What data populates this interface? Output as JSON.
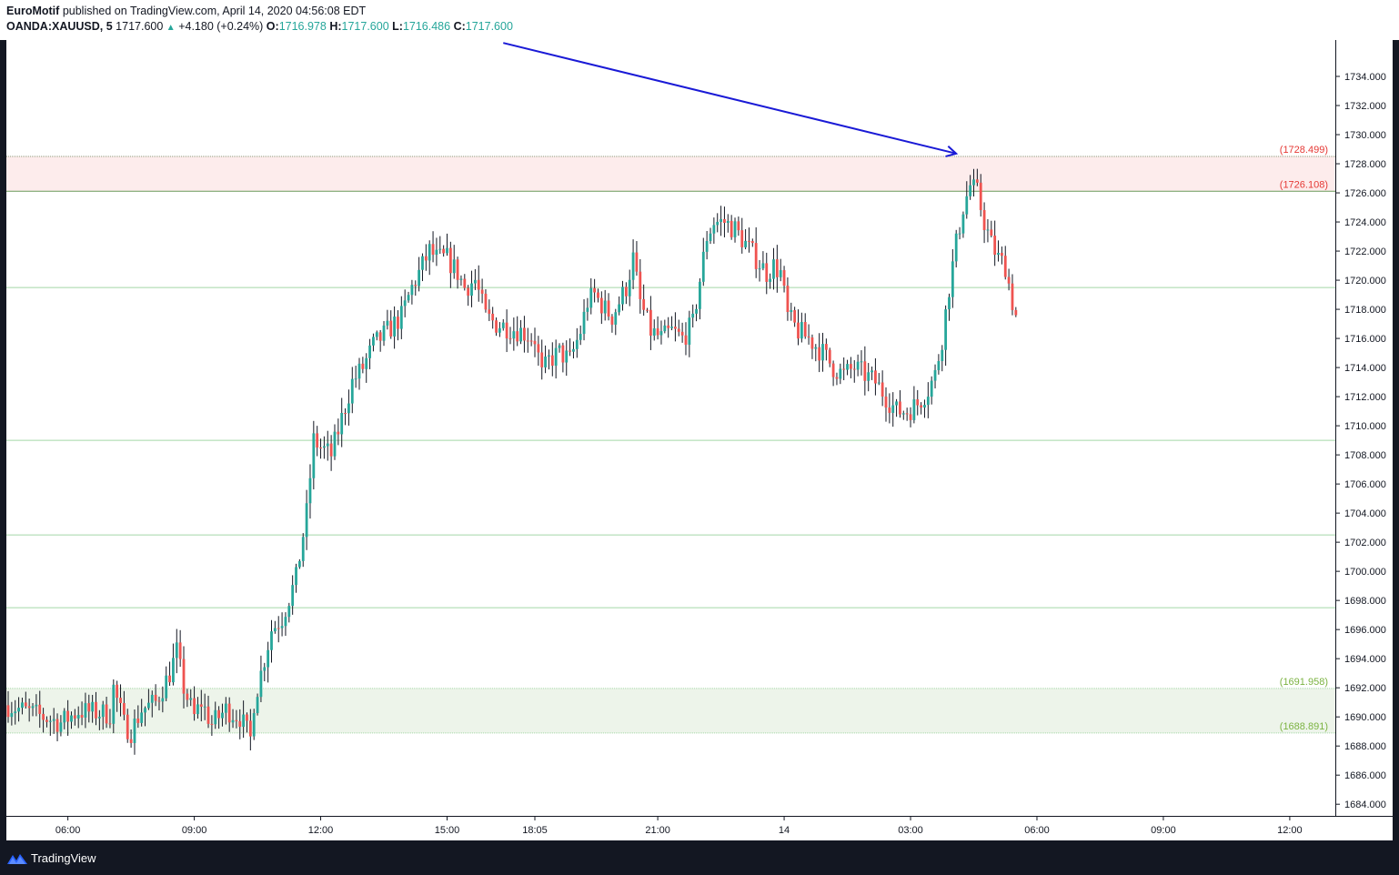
{
  "header": {
    "author": "EuroMotif",
    "published_text": "published on TradingView.com, April 14, 2020 04:56:08 EDT",
    "symbol": "OANDA:XAUUSD, 5",
    "last_price": "1717.600",
    "change": "+4.180 (+0.24%)",
    "open_label": "O:",
    "open": "1716.978",
    "high_label": "H:",
    "high": "1717.600",
    "low_label": "L:",
    "low": "1716.486",
    "close_label": "C:",
    "close": "1717.600"
  },
  "footer": {
    "brand": "TradingView"
  },
  "colors": {
    "up": "#26a69a",
    "down": "#ef5350",
    "wick": "#131722",
    "hline": "#a5d6a7",
    "resistance_fill": "#fdecec",
    "support_fill": "#edf4ea",
    "resistance_label": "#e53935",
    "support_label": "#7cb342",
    "arrow": "#1a1ad6"
  },
  "chart_data": {
    "type": "candlestick",
    "symbol": "OANDA:XAUUSD",
    "interval": "5",
    "ylim": [
      1683.2,
      1736.5
    ],
    "y_ticks": [
      1684,
      1686,
      1688,
      1690,
      1692,
      1694,
      1696,
      1698,
      1700,
      1702,
      1704,
      1706,
      1708,
      1710,
      1712,
      1714,
      1716,
      1718,
      1720,
      1722,
      1724,
      1726,
      1728,
      1730,
      1732,
      1734
    ],
    "x_ticks": [
      {
        "label": "06:00",
        "bar": 17
      },
      {
        "label": "09:00",
        "bar": 53
      },
      {
        "label": "12:00",
        "bar": 89
      },
      {
        "label": "15:00",
        "bar": 125
      },
      {
        "label": "18:05",
        "bar": 150
      },
      {
        "label": "21:00",
        "bar": 185
      },
      {
        "label": "14",
        "bar": 221
      },
      {
        "label": "03:00",
        "bar": 257
      },
      {
        "label": "06:00",
        "bar": 293
      },
      {
        "label": "09:00",
        "bar": 329
      },
      {
        "label": "12:00",
        "bar": 365
      }
    ],
    "zones": [
      {
        "name": "resistance",
        "top": 1728.499,
        "bottom": 1726.108,
        "top_label": "(1728.499)",
        "bottom_label": "(1726.108)"
      },
      {
        "name": "support",
        "top": 1691.958,
        "bottom": 1688.891,
        "top_label": "(1691.958)",
        "bottom_label": "(1688.891)"
      }
    ],
    "horizontal_lines": [
      1719.5,
      1709.0,
      1702.5,
      1697.5
    ],
    "arrow": {
      "from_bar": 141,
      "from_price": 1736.3,
      "to_bar": 270,
      "to_price": 1728.7
    },
    "anchors": [
      [
        0,
        1690.8
      ],
      [
        10,
        1690.0
      ],
      [
        15,
        1689.6
      ],
      [
        20,
        1690.4
      ],
      [
        25,
        1690.3
      ],
      [
        29,
        1690.2
      ],
      [
        30,
        1692.0
      ],
      [
        33,
        1689.5
      ],
      [
        35,
        1689.0
      ],
      [
        38,
        1690.5
      ],
      [
        42,
        1691.0
      ],
      [
        46,
        1693.0
      ],
      [
        48,
        1694.5
      ],
      [
        50,
        1692.0
      ],
      [
        53,
        1690.0
      ],
      [
        55,
        1691.0
      ],
      [
        58,
        1689.5
      ],
      [
        62,
        1690.5
      ],
      [
        66,
        1690.0
      ],
      [
        69,
        1688.5
      ],
      [
        70,
        1691.0
      ],
      [
        72,
        1693.0
      ],
      [
        75,
        1696.0
      ],
      [
        78,
        1696.8
      ],
      [
        82,
        1699.5
      ],
      [
        85,
        1704.0
      ],
      [
        87,
        1709.0
      ],
      [
        89,
        1708.5
      ],
      [
        92,
        1708.0
      ],
      [
        95,
        1710.5
      ],
      [
        98,
        1713.0
      ],
      [
        101,
        1714.0
      ],
      [
        104,
        1715.5
      ],
      [
        108,
        1716.5
      ],
      [
        112,
        1717.5
      ],
      [
        115,
        1719.5
      ],
      [
        118,
        1721.0
      ],
      [
        120,
        1722.0
      ],
      [
        122,
        1721.5
      ],
      [
        125,
        1721.5
      ],
      [
        128,
        1720.5
      ],
      [
        130,
        1719.5
      ],
      [
        133,
        1720.0
      ],
      [
        136,
        1717.5
      ],
      [
        139,
        1717.0
      ],
      [
        142,
        1716.8
      ],
      [
        146,
        1716.5
      ],
      [
        150,
        1716.0
      ],
      [
        152,
        1713.5
      ],
      [
        154,
        1714.5
      ],
      [
        157,
        1715.0
      ],
      [
        160,
        1714.5
      ],
      [
        163,
        1716.5
      ],
      [
        165,
        1718.5
      ],
      [
        167,
        1719.0
      ],
      [
        170,
        1718.0
      ],
      [
        172,
        1717.5
      ],
      [
        174,
        1718.5
      ],
      [
        176,
        1719.5
      ],
      [
        178,
        1721.5
      ],
      [
        180,
        1718.5
      ],
      [
        183,
        1716.5
      ],
      [
        186,
        1716.0
      ],
      [
        189,
        1716.5
      ],
      [
        192,
        1716.0
      ],
      [
        195,
        1717.0
      ],
      [
        197,
        1720.0
      ],
      [
        199,
        1723.0
      ],
      [
        201,
        1724.0
      ],
      [
        204,
        1724.0
      ],
      [
        207,
        1723.5
      ],
      [
        210,
        1722.5
      ],
      [
        213,
        1721.5
      ],
      [
        216,
        1720.5
      ],
      [
        218,
        1721.0
      ],
      [
        220,
        1720.5
      ],
      [
        222,
        1717.5
      ],
      [
        225,
        1716.5
      ],
      [
        228,
        1716.0
      ],
      [
        232,
        1715.0
      ],
      [
        235,
        1714.0
      ],
      [
        238,
        1713.5
      ],
      [
        241,
        1714.0
      ],
      [
        244,
        1713.5
      ],
      [
        247,
        1713.0
      ],
      [
        250,
        1712.0
      ],
      [
        253,
        1711.0
      ],
      [
        256,
        1711.0
      ],
      [
        259,
        1711.5
      ],
      [
        262,
        1712.5
      ],
      [
        264,
        1713.5
      ],
      [
        266,
        1716.0
      ],
      [
        268,
        1719.5
      ],
      [
        270,
        1722.5
      ],
      [
        272,
        1725.0
      ],
      [
        274,
        1726.5
      ],
      [
        276,
        1726.0
      ],
      [
        278,
        1724.0
      ],
      [
        280,
        1722.5
      ],
      [
        282,
        1721.5
      ],
      [
        284,
        1721.0
      ],
      [
        286,
        1718.5
      ],
      [
        287,
        1717.6
      ]
    ],
    "last_close": 1717.6
  }
}
